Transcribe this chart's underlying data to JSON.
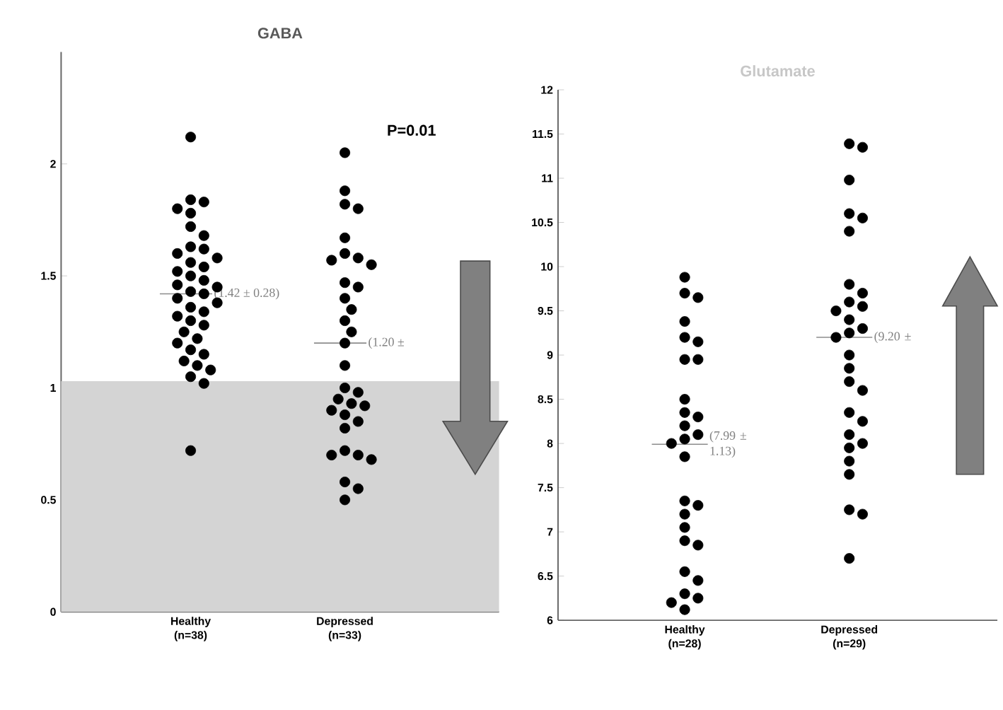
{
  "chart_data": [
    {
      "type": "scatter",
      "title": "GABA",
      "categories": [
        "Healthy (n=38)",
        "Depressed (n=33)"
      ],
      "ylim": [
        0,
        2.5
      ],
      "yticks": [
        0,
        0.5,
        1,
        1.5,
        2
      ],
      "marker": "circle",
      "series": [
        {
          "color": "#000000",
          "x": [
            "Healthy (n=38)",
            "Healthy (n=38)",
            "Healthy (n=38)",
            "Healthy (n=38)",
            "Healthy (n=38)",
            "Healthy (n=38)",
            "Healthy (n=38)",
            "Healthy (n=38)",
            "Healthy (n=38)",
            "Healthy (n=38)",
            "Healthy (n=38)",
            "Healthy (n=38)",
            "Healthy (n=38)",
            "Healthy (n=38)",
            "Healthy (n=38)",
            "Healthy (n=38)",
            "Healthy (n=38)",
            "Healthy (n=38)",
            "Healthy (n=38)",
            "Healthy (n=38)",
            "Healthy (n=38)",
            "Healthy (n=38)",
            "Healthy (n=38)",
            "Healthy (n=38)",
            "Healthy (n=38)",
            "Healthy (n=38)",
            "Healthy (n=38)",
            "Healthy (n=38)",
            "Healthy (n=38)",
            "Healthy (n=38)",
            "Healthy (n=38)",
            "Healthy (n=38)",
            "Healthy (n=38)",
            "Healthy (n=38)",
            "Healthy (n=38)",
            "Healthy (n=38)",
            "Healthy (n=38)",
            "Healthy (n=38)"
          ],
          "values": [
            2.12,
            1.84,
            1.83,
            1.8,
            1.78,
            1.72,
            1.68,
            1.63,
            1.62,
            1.6,
            1.58,
            1.56,
            1.54,
            1.52,
            1.5,
            1.48,
            1.46,
            1.45,
            1.43,
            1.42,
            1.4,
            1.38,
            1.36,
            1.34,
            1.32,
            1.3,
            1.28,
            1.25,
            1.22,
            1.2,
            1.17,
            1.15,
            1.12,
            1.1,
            1.08,
            1.05,
            1.02,
            0.72
          ]
        },
        {
          "color": "#000000",
          "x": [
            "Depressed (n=33)",
            "Depressed (n=33)",
            "Depressed (n=33)",
            "Depressed (n=33)",
            "Depressed (n=33)",
            "Depressed (n=33)",
            "Depressed (n=33)",
            "Depressed (n=33)",
            "Depressed (n=33)",
            "Depressed (n=33)",
            "Depressed (n=33)",
            "Depressed (n=33)",
            "Depressed (n=33)",
            "Depressed (n=33)",
            "Depressed (n=33)",
            "Depressed (n=33)",
            "Depressed (n=33)",
            "Depressed (n=33)",
            "Depressed (n=33)",
            "Depressed (n=33)",
            "Depressed (n=33)",
            "Depressed (n=33)",
            "Depressed (n=33)",
            "Depressed (n=33)",
            "Depressed (n=33)",
            "Depressed (n=33)",
            "Depressed (n=33)",
            "Depressed (n=33)",
            "Depressed (n=33)",
            "Depressed (n=33)",
            "Depressed (n=33)",
            "Depressed (n=33)",
            "Depressed (n=33)"
          ],
          "values": [
            2.05,
            1.88,
            1.82,
            1.8,
            1.67,
            1.6,
            1.58,
            1.57,
            1.55,
            1.47,
            1.45,
            1.4,
            1.35,
            1.3,
            1.25,
            1.2,
            1.1,
            1.0,
            0.98,
            0.95,
            0.93,
            0.92,
            0.9,
            0.88,
            0.85,
            0.82,
            0.72,
            0.7,
            0.7,
            0.68,
            0.58,
            0.55,
            0.5
          ]
        }
      ],
      "bands": [
        {
          "axis": "y",
          "from": 0,
          "to": 1.03,
          "color": "#d4d4d4"
        }
      ],
      "annotations": [
        {
          "text": "(1.42 ± 0.28)",
          "x": "Healthy (n=38)",
          "y": 1.42
        },
        {
          "text": "(1.20 ±",
          "x": "Depressed (n=33)",
          "y": 1.2
        },
        "P=0.01"
      ]
    },
    {
      "type": "scatter",
      "title": "Glutamate",
      "categories": [
        "Healthy (n=28)",
        "Depressed (n=29)"
      ],
      "ylim": [
        6,
        12
      ],
      "yticks": [
        6,
        6.5,
        7,
        7.5,
        8,
        8.5,
        9,
        9.5,
        10,
        10.5,
        11,
        11.5,
        12
      ],
      "marker": "circle",
      "series": [
        {
          "color": "#000000",
          "x": [
            "Healthy (n=28)",
            "Healthy (n=28)",
            "Healthy (n=28)",
            "Healthy (n=28)",
            "Healthy (n=28)",
            "Healthy (n=28)",
            "Healthy (n=28)",
            "Healthy (n=28)",
            "Healthy (n=28)",
            "Healthy (n=28)",
            "Healthy (n=28)",
            "Healthy (n=28)",
            "Healthy (n=28)",
            "Healthy (n=28)",
            "Healthy (n=28)",
            "Healthy (n=28)",
            "Healthy (n=28)",
            "Healthy (n=28)",
            "Healthy (n=28)",
            "Healthy (n=28)",
            "Healthy (n=28)",
            "Healthy (n=28)",
            "Healthy (n=28)",
            "Healthy (n=28)",
            "Healthy (n=28)",
            "Healthy (n=28)",
            "Healthy (n=28)",
            "Healthy (n=28)"
          ],
          "values": [
            9.88,
            9.7,
            9.65,
            9.38,
            9.2,
            9.15,
            8.95,
            8.95,
            8.5,
            8.35,
            8.3,
            8.2,
            8.1,
            8.05,
            8.0,
            7.85,
            7.35,
            7.3,
            7.2,
            7.05,
            6.9,
            6.85,
            6.55,
            6.45,
            6.3,
            6.25,
            6.2,
            6.12
          ]
        },
        {
          "color": "#000000",
          "x": [
            "Depressed (n=29)",
            "Depressed (n=29)",
            "Depressed (n=29)",
            "Depressed (n=29)",
            "Depressed (n=29)",
            "Depressed (n=29)",
            "Depressed (n=29)",
            "Depressed (n=29)",
            "Depressed (n=29)",
            "Depressed (n=29)",
            "Depressed (n=29)",
            "Depressed (n=29)",
            "Depressed (n=29)",
            "Depressed (n=29)",
            "Depressed (n=29)",
            "Depressed (n=29)",
            "Depressed (n=29)",
            "Depressed (n=29)",
            "Depressed (n=29)",
            "Depressed (n=29)",
            "Depressed (n=29)",
            "Depressed (n=29)",
            "Depressed (n=29)",
            "Depressed (n=29)",
            "Depressed (n=29)",
            "Depressed (n=29)",
            "Depressed (n=29)",
            "Depressed (n=29)",
            "Depressed (n=29)"
          ],
          "values": [
            11.39,
            11.35,
            10.98,
            10.6,
            10.55,
            10.4,
            9.8,
            9.7,
            9.6,
            9.55,
            9.5,
            9.4,
            9.3,
            9.25,
            9.2,
            9.0,
            8.85,
            8.7,
            8.6,
            8.35,
            8.25,
            8.1,
            8.0,
            7.95,
            7.8,
            7.65,
            7.25,
            7.2,
            6.7
          ]
        }
      ],
      "annotations": [
        {
          "text": "(7.99 ± 1.13)",
          "x": "Healthy (n=28)",
          "y": 7.99
        },
        {
          "text": "(9.20 ±",
          "x": "Depressed (n=29)",
          "y": 9.2
        }
      ]
    }
  ]
}
